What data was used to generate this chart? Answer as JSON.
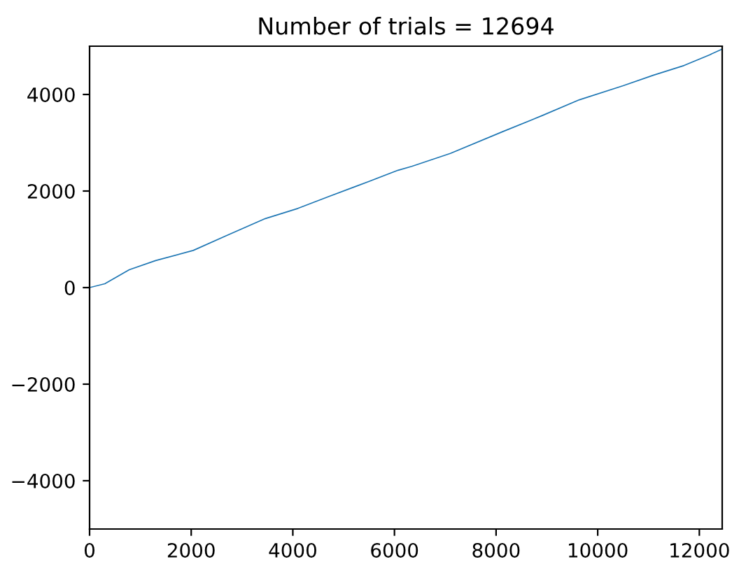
{
  "chart_data": {
    "type": "line",
    "title": "Number of trials = 12694",
    "series": [
      {
        "color": "#1f77b4",
        "x": [
          0,
          300,
          780,
          1300,
          2040,
          2700,
          3460,
          4100,
          4720,
          5500,
          6070,
          6340,
          7100,
          8130,
          8900,
          9640,
          10500,
          11100,
          11700,
          12200,
          12450
        ],
        "values": [
          0,
          80,
          370,
          560,
          770,
          1080,
          1430,
          1640,
          1890,
          2200,
          2430,
          2510,
          2780,
          3230,
          3560,
          3890,
          4180,
          4400,
          4600,
          4820,
          4940
        ]
      }
    ],
    "xlim": [
      0,
      12450
    ],
    "ylim": [
      -5000,
      5000
    ],
    "xticks": [
      0,
      2000,
      4000,
      6000,
      8000,
      10000,
      12000
    ],
    "yticks": [
      {
        "value": -4000,
        "label": "−4000"
      },
      {
        "value": -2000,
        "label": "−2000"
      },
      0,
      2000,
      4000
    ],
    "grid": false,
    "legend": false
  }
}
